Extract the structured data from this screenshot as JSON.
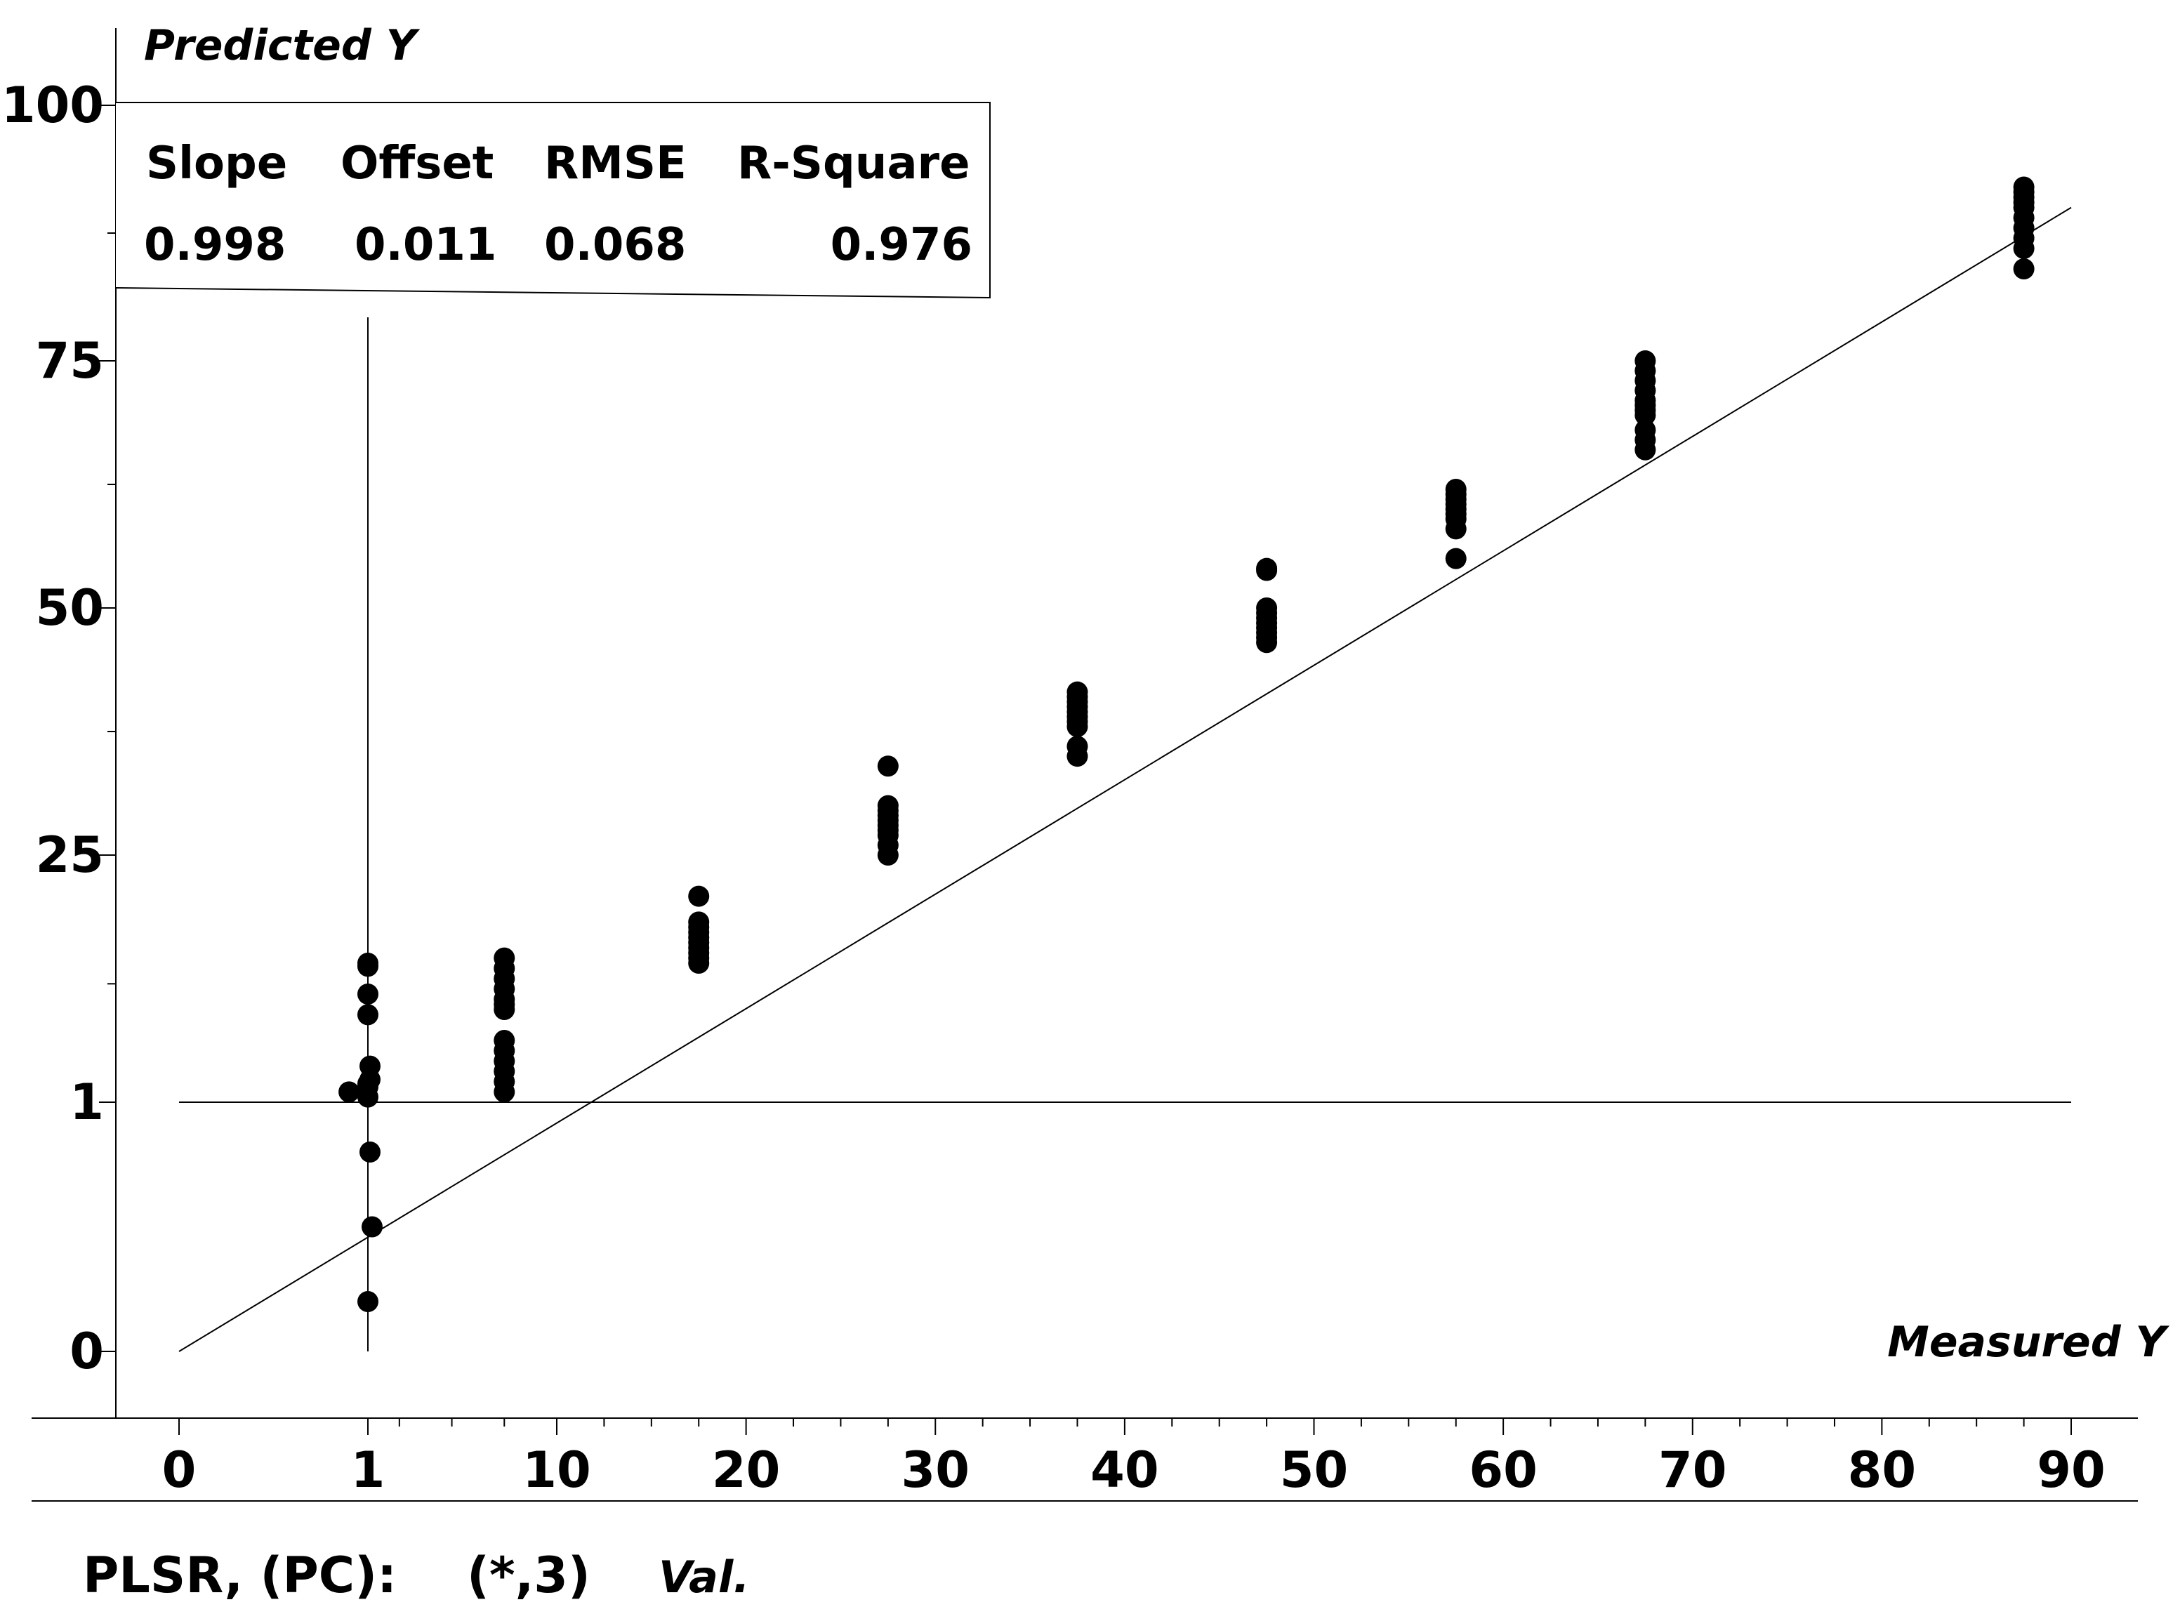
{
  "chart_data": {
    "type": "scatter",
    "y_title": "Predicted Y",
    "x_title": "Measured Y",
    "xlabel_note": "",
    "x_ticks": [
      0,
      1,
      10,
      20,
      30,
      40,
      50,
      60,
      70,
      80,
      90
    ],
    "y_ticks": [
      0,
      1,
      25,
      50,
      75,
      100
    ],
    "stats": {
      "headers": [
        "Slope",
        "Offset",
        "RMSE",
        "R-Square"
      ],
      "values": [
        "0.998",
        "0.011",
        "0.068",
        "0.976"
      ]
    },
    "footer": {
      "method": "PLSR, (PC):",
      "components": "(*,3)",
      "mode": "Val."
    },
    "reference_lines": {
      "x": 1,
      "y": 1
    },
    "fit_line": {
      "x": [
        0,
        90
      ],
      "y": [
        -2.5,
        90
      ]
    },
    "grid": false,
    "point_color": "#000000",
    "series": [
      {
        "x": [
          1,
          1,
          1,
          1,
          1.1,
          1.1,
          1,
          1,
          0.9,
          1,
          1.2,
          1,
          1.1
        ],
        "y": [
          14.5,
          14.2,
          11.5,
          9.5,
          4.5,
          3.2,
          2.8,
          2.5,
          2,
          1.5,
          0.5,
          0.2,
          0.8
        ]
      },
      {
        "x": [
          7.5,
          7.5,
          7.5,
          7.5,
          7.5,
          7.5,
          7.5,
          7.5,
          7.5,
          7.5,
          7.5,
          7.5,
          7.5
        ],
        "y": [
          15,
          14,
          13,
          12,
          11,
          10.5,
          10,
          7,
          6,
          5,
          4,
          3,
          2
        ]
      },
      {
        "x": [
          17.5,
          17.5,
          17.5,
          17.5,
          17.5,
          17.5,
          17.5,
          17.5,
          17.5,
          17.5
        ],
        "y": [
          21,
          18.5,
          18,
          17.5,
          17,
          16.5,
          16,
          15.5,
          15,
          14.5
        ]
      },
      {
        "x": [
          27.5,
          27.5,
          27.5,
          27.5,
          27.5,
          27.5,
          27.5,
          27.5,
          27.5,
          27.5
        ],
        "y": [
          34,
          30,
          29.5,
          29,
          28.5,
          28,
          27.5,
          27,
          26,
          25
        ]
      },
      {
        "x": [
          37.5,
          37.5,
          37.5,
          37.5,
          37.5,
          37.5,
          37.5,
          37.5,
          37.5,
          37.5
        ],
        "y": [
          41.5,
          41,
          40.5,
          40,
          39.5,
          39,
          38.5,
          38,
          36,
          35
        ]
      },
      {
        "x": [
          47.5,
          47.5,
          47.5,
          47.5,
          47.5,
          47.5,
          47.5,
          47.5,
          47.5,
          47.5
        ],
        "y": [
          54,
          53.8,
          50,
          49.5,
          49,
          48.5,
          48,
          47.5,
          47,
          46.5
        ]
      },
      {
        "x": [
          57.5,
          57.5,
          57.5,
          57.5,
          57.5,
          57.5,
          57.5,
          57.5,
          57.5
        ],
        "y": [
          62,
          61.5,
          61,
          60.5,
          60,
          59.5,
          59,
          58,
          55
        ]
      },
      {
        "x": [
          67.5,
          67.5,
          67.5,
          67.5,
          67.5,
          67.5,
          67.5,
          67.5,
          67.5,
          67.5,
          67.5
        ],
        "y": [
          75,
          74,
          73,
          72,
          71,
          70.5,
          70,
          69.5,
          68,
          67,
          66
        ]
      },
      {
        "x": [
          87.5,
          87.5,
          87.5,
          87.5,
          87.5,
          87.5,
          87.5,
          87.5,
          87.5,
          87.5
        ],
        "y": [
          92,
          91.5,
          91,
          90.5,
          90,
          89,
          88,
          87,
          86,
          84
        ]
      }
    ]
  }
}
